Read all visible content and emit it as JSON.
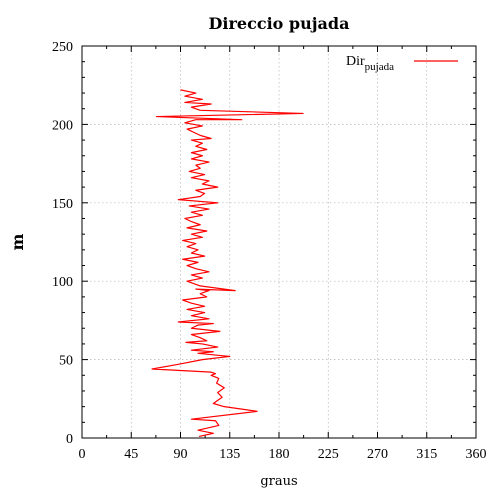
{
  "chart_data": {
    "type": "line",
    "title": "Direccio pujada",
    "xlabel": "graus",
    "ylabel": "m",
    "xlim": [
      0,
      360
    ],
    "ylim": [
      0,
      250
    ],
    "xticks": [
      0,
      45,
      90,
      135,
      180,
      225,
      270,
      315,
      360
    ],
    "yticks": [
      0,
      50,
      100,
      150,
      200,
      250
    ],
    "grid": true,
    "legend_position": "top-right",
    "series": [
      {
        "name": "Dir",
        "name_subscript": "pujada",
        "color": "#ff0000",
        "points": [
          [
            107,
            1
          ],
          [
            120,
            3
          ],
          [
            106,
            5
          ],
          [
            125,
            8
          ],
          [
            122,
            11
          ],
          [
            100,
            12
          ],
          [
            160,
            17
          ],
          [
            130,
            20
          ],
          [
            120,
            22
          ],
          [
            128,
            26
          ],
          [
            124,
            29
          ],
          [
            130,
            32
          ],
          [
            123,
            35
          ],
          [
            125,
            38
          ],
          [
            118,
            40
          ],
          [
            122,
            41
          ],
          [
            118,
            42
          ],
          [
            64,
            44
          ],
          [
            88,
            47
          ],
          [
            110,
            50
          ],
          [
            135,
            52
          ],
          [
            106,
            54
          ],
          [
            120,
            55
          ],
          [
            100,
            56
          ],
          [
            124,
            58
          ],
          [
            110,
            60
          ],
          [
            95,
            61
          ],
          [
            114,
            62
          ],
          [
            108,
            64
          ],
          [
            100,
            66
          ],
          [
            126,
            68
          ],
          [
            100,
            70
          ],
          [
            106,
            72
          ],
          [
            120,
            73
          ],
          [
            88,
            74
          ],
          [
            116,
            76
          ],
          [
            100,
            78
          ],
          [
            112,
            80
          ],
          [
            96,
            82
          ],
          [
            112,
            84
          ],
          [
            100,
            86
          ],
          [
            92,
            88
          ],
          [
            114,
            90
          ],
          [
            108,
            92
          ],
          [
            116,
            94
          ],
          [
            104,
            95
          ],
          [
            140,
            94
          ],
          [
            108,
            97
          ],
          [
            96,
            100
          ],
          [
            110,
            102
          ],
          [
            100,
            104
          ],
          [
            116,
            106
          ],
          [
            104,
            108
          ],
          [
            96,
            110
          ],
          [
            106,
            112
          ],
          [
            92,
            114
          ],
          [
            112,
            116
          ],
          [
            100,
            118
          ],
          [
            106,
            120
          ],
          [
            96,
            122
          ],
          [
            104,
            124
          ],
          [
            92,
            126
          ],
          [
            110,
            128
          ],
          [
            100,
            130
          ],
          [
            114,
            132
          ],
          [
            96,
            134
          ],
          [
            108,
            136
          ],
          [
            100,
            138
          ],
          [
            94,
            140
          ],
          [
            110,
            142
          ],
          [
            100,
            144
          ],
          [
            116,
            146
          ],
          [
            98,
            148
          ],
          [
            124,
            150
          ],
          [
            88,
            152
          ],
          [
            108,
            154
          ],
          [
            112,
            156
          ],
          [
            104,
            158
          ],
          [
            124,
            160
          ],
          [
            110,
            162
          ],
          [
            116,
            164
          ],
          [
            100,
            166
          ],
          [
            112,
            168
          ],
          [
            98,
            170
          ],
          [
            108,
            172
          ],
          [
            104,
            174
          ],
          [
            116,
            176
          ],
          [
            100,
            178
          ],
          [
            110,
            180
          ],
          [
            100,
            182
          ],
          [
            114,
            184
          ],
          [
            104,
            186
          ],
          [
            110,
            188
          ],
          [
            100,
            190
          ],
          [
            118,
            191
          ],
          [
            108,
            193
          ],
          [
            102,
            195
          ],
          [
            96,
            197
          ],
          [
            110,
            199
          ],
          [
            94,
            201
          ],
          [
            104,
            203
          ],
          [
            146,
            203
          ],
          [
            68,
            205
          ],
          [
            202,
            207
          ],
          [
            108,
            209
          ],
          [
            100,
            211
          ],
          [
            118,
            213
          ],
          [
            94,
            214
          ],
          [
            110,
            216
          ],
          [
            94,
            218
          ],
          [
            104,
            220
          ],
          [
            90,
            222
          ]
        ]
      }
    ]
  }
}
